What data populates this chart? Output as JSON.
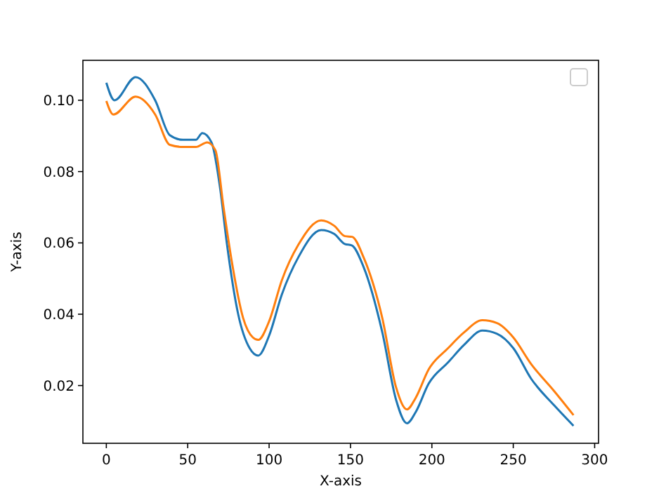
{
  "chart_data": {
    "type": "line",
    "xlabel": "X-axis",
    "ylabel": "Y-axis",
    "xlim": [
      -14.4,
      302.4
    ],
    "ylim": [
      0.0038,
      0.1112
    ],
    "xticks": [
      0,
      50,
      100,
      150,
      200,
      250,
      300
    ],
    "yticks": [
      {
        "value": 0.02,
        "label": "0.02"
      },
      {
        "value": 0.04,
        "label": "0.04"
      },
      {
        "value": 0.06,
        "label": "0.06"
      },
      {
        "value": 0.08,
        "label": "0.08"
      },
      {
        "value": 0.1,
        "label": "0.10"
      }
    ],
    "grid": false,
    "marker": "none",
    "line_style": "solid",
    "series": [
      {
        "color": "#1f77b4",
        "x": [
          0,
          5,
          18,
          30,
          39,
          47,
          55,
          59,
          64.6,
          70,
          74,
          81,
          88,
          93.3,
          100,
          107.8,
          118,
          132,
          140,
          146.5,
          150.8,
          158,
          169.5,
          178,
          184.7,
          190,
          198,
          210,
          220,
          231,
          240,
          250,
          261,
          275,
          287
        ],
        "values": [
          0.1049,
          0.1,
          0.1065,
          0.1,
          0.0902,
          0.0889,
          0.0889,
          0.0908,
          0.0882,
          0.075,
          0.06,
          0.04,
          0.0305,
          0.0284,
          0.034,
          0.0455,
          0.056,
          0.0636,
          0.0625,
          0.0597,
          0.0593,
          0.0533,
          0.035,
          0.016,
          0.0094,
          0.0125,
          0.0205,
          0.0265,
          0.0315,
          0.0354,
          0.0345,
          0.0305,
          0.0219,
          0.0145,
          0.0087
        ]
      },
      {
        "color": "#ff7f0e",
        "x": [
          0,
          4.3,
          18,
          30,
          39,
          47,
          55,
          62,
          67,
          72,
          77,
          84,
          90,
          93.3,
          100,
          107.8,
          118,
          132,
          140,
          146.5,
          151,
          158,
          169.5,
          178,
          184.7,
          190,
          198,
          210,
          220,
          231,
          240,
          250,
          261,
          275,
          287
        ],
        "values": [
          0.0998,
          0.096,
          0.101,
          0.096,
          0.0875,
          0.0869,
          0.0869,
          0.0882,
          0.086,
          0.07,
          0.055,
          0.039,
          0.0335,
          0.0328,
          0.038,
          0.0495,
          0.0595,
          0.0663,
          0.0648,
          0.0619,
          0.0617,
          0.056,
          0.039,
          0.0195,
          0.0133,
          0.0165,
          0.0245,
          0.0305,
          0.035,
          0.0383,
          0.0375,
          0.0335,
          0.026,
          0.0185,
          0.0117
        ]
      }
    ]
  }
}
